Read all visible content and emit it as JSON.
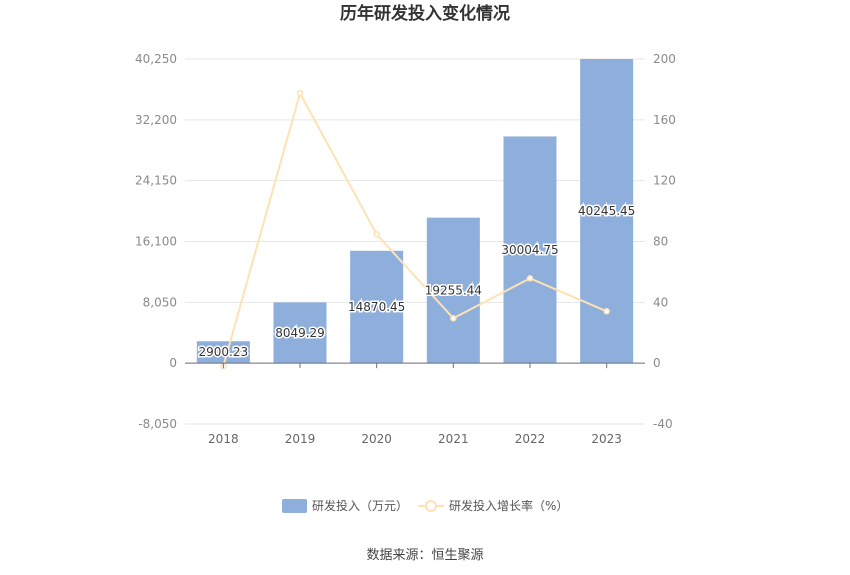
{
  "chart_data": {
    "type": "bar",
    "title": "历年研发投入变化情况",
    "categories": [
      "2018",
      "2019",
      "2020",
      "2021",
      "2022",
      "2023"
    ],
    "series": [
      {
        "name": "研发投入（万元）",
        "type": "bar",
        "axis": "left",
        "color": "#8eaedb",
        "values": [
          2900.23,
          8049.29,
          14870.45,
          19255.44,
          30004.75,
          40245.45
        ],
        "labels": [
          "2900.23",
          "8049.29",
          "14870.45",
          "19255.44",
          "30004.75",
          "40245.45"
        ]
      },
      {
        "name": "研发投入增长率（%）",
        "type": "line",
        "axis": "right",
        "color": "#fde2b3",
        "values": [
          -2,
          177.5,
          84.7,
          29.5,
          55.8,
          34.1
        ]
      }
    ],
    "y_left": {
      "min": -8050,
      "max": 40250,
      "ticks": [
        "-8,050",
        "0",
        "8,050",
        "16,100",
        "24,150",
        "32,200",
        "40,250"
      ]
    },
    "y_right": {
      "min": -40,
      "max": 200,
      "ticks": [
        "-40",
        "0",
        "40",
        "80",
        "120",
        "160",
        "200"
      ]
    },
    "grid": true,
    "legend_position": "bottom"
  },
  "source": "数据来源：恒生聚源"
}
